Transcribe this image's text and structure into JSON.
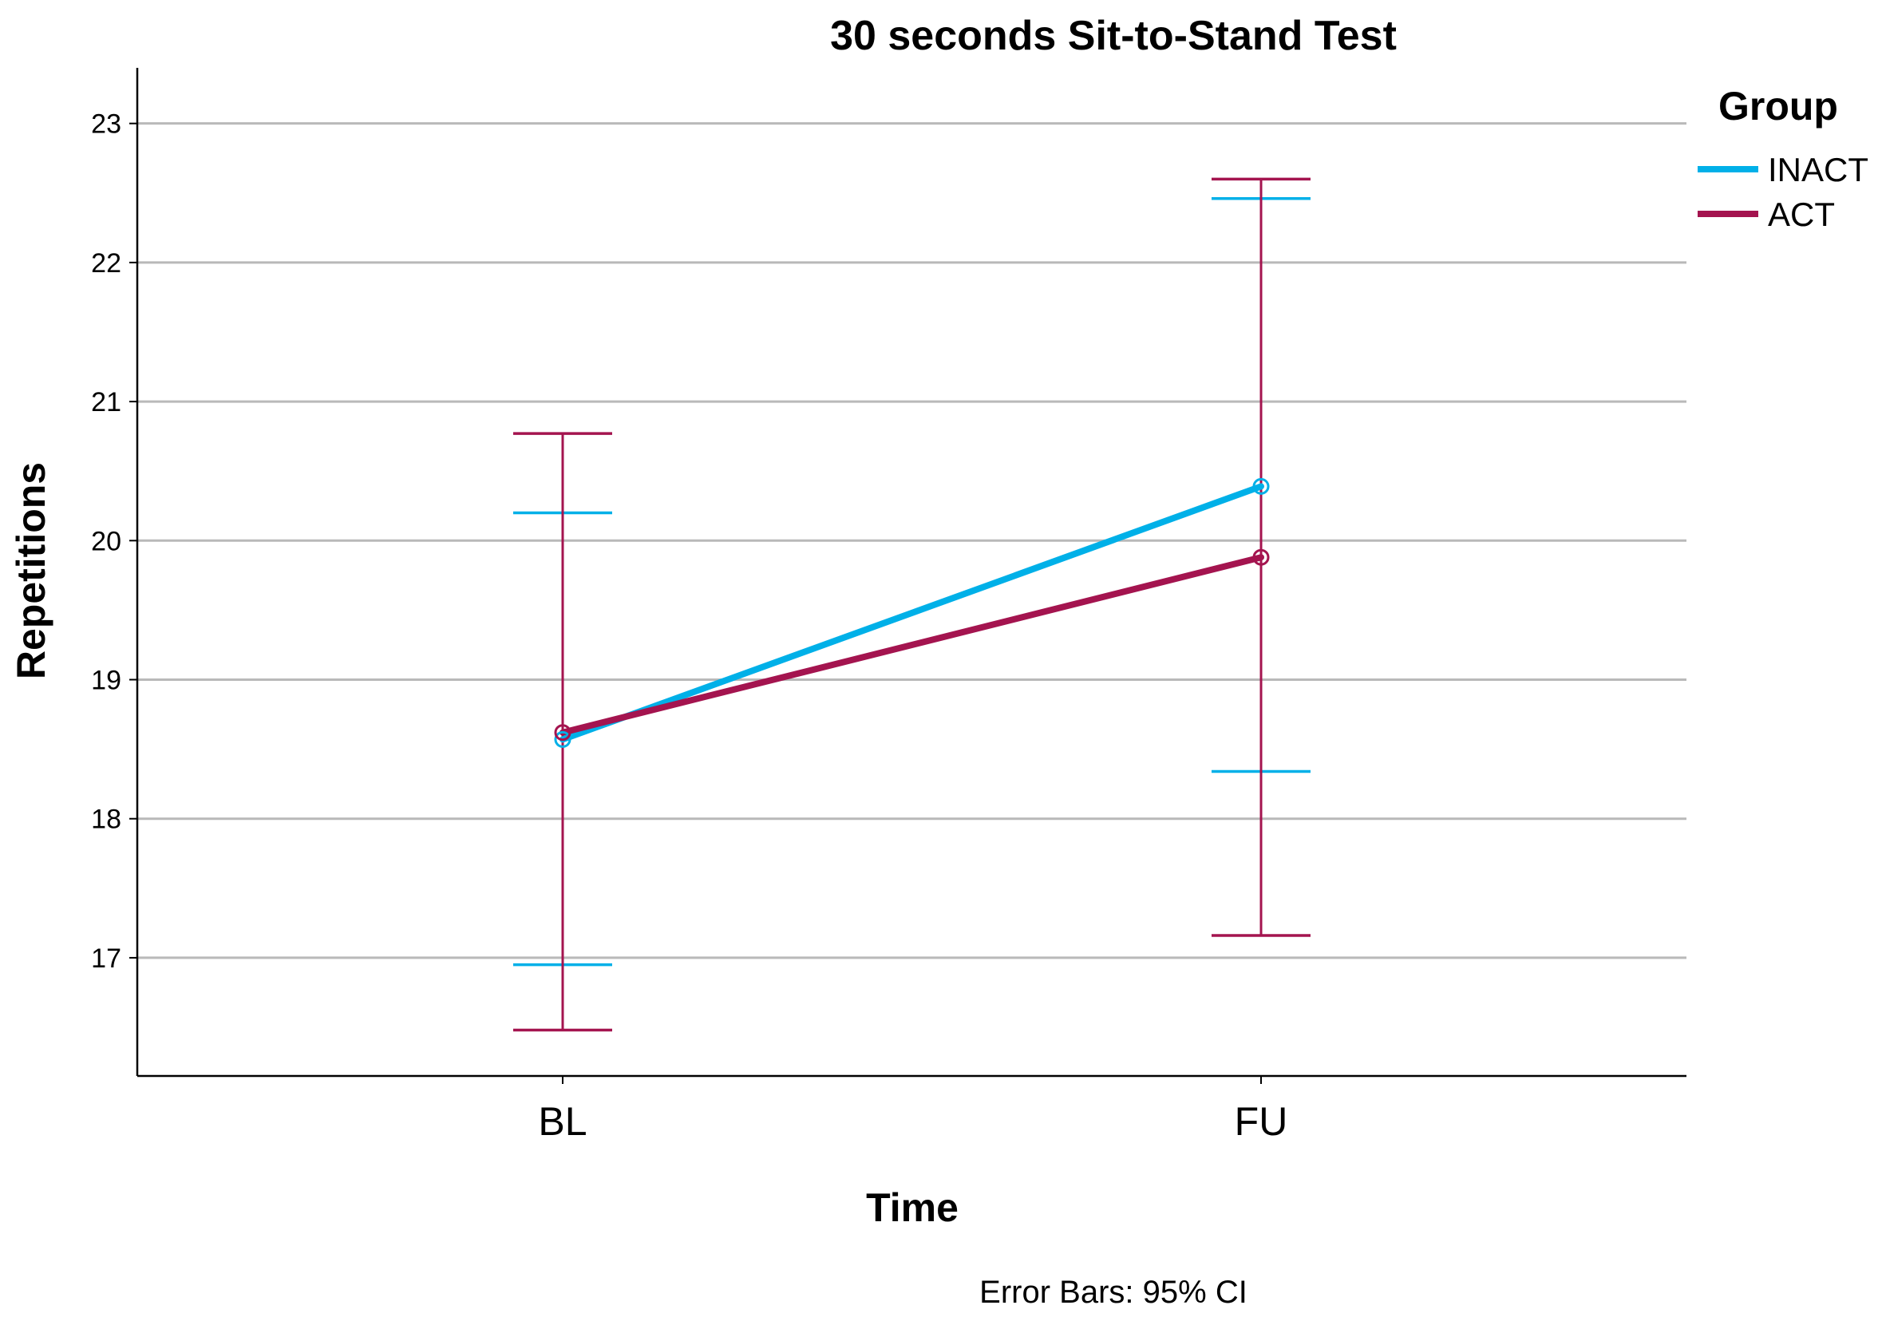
{
  "chart_data": {
    "type": "line",
    "title": "30 seconds Sit-to-Stand Test",
    "xlabel": "Time",
    "ylabel": "Repetitions",
    "categories": [
      "BL",
      "FU"
    ],
    "yticks": [
      17,
      18,
      19,
      20,
      21,
      22,
      23
    ],
    "ylim": [
      16.15,
      23.4
    ],
    "grid": "horizontal",
    "legend": {
      "title": "Group",
      "position": "top-right"
    },
    "series": [
      {
        "name": "INACT",
        "color": "#00b0e8",
        "values": [
          18.57,
          20.39
        ],
        "ci_lower": [
          16.95,
          18.34
        ],
        "ci_upper": [
          20.2,
          22.46
        ]
      },
      {
        "name": "ACT",
        "color": "#a4144f",
        "values": [
          18.62,
          19.88
        ],
        "ci_lower": [
          16.48,
          17.16
        ],
        "ci_upper": [
          20.77,
          22.6
        ]
      }
    ],
    "footnote": "Error Bars: 95% CI"
  }
}
